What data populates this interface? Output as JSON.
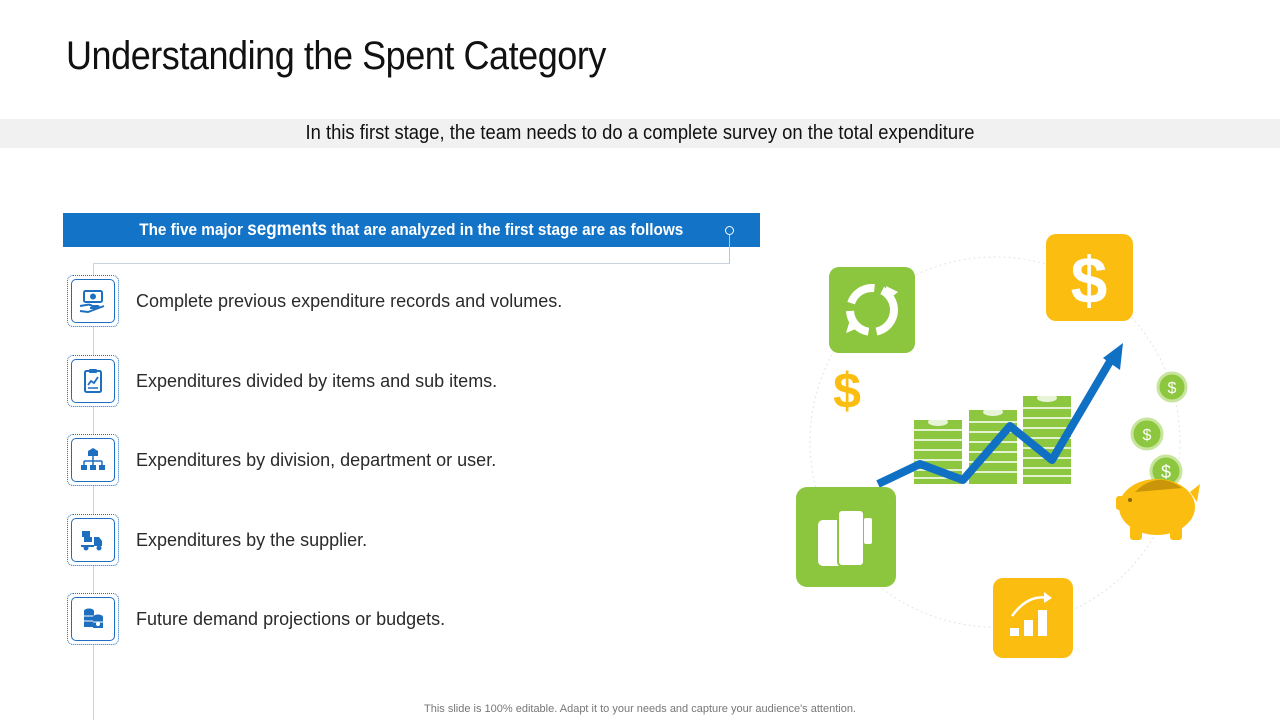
{
  "title": "Understanding the Spent Category",
  "subtitle": "In this first stage, the team needs to do a complete survey on the total expenditure",
  "banner": {
    "part1": "The five major ",
    "emphasis": "segments",
    "part2": " that are analyzed in the first stage are as follows"
  },
  "items": [
    {
      "label": "Complete previous expenditure records and volumes.",
      "icon": "money-hand-icon"
    },
    {
      "label": "Expenditures divided by items and sub items.",
      "icon": "clipboard-chart-icon"
    },
    {
      "label": "Expenditures by division, department or user.",
      "icon": "org-chart-icon"
    },
    {
      "label": "Expenditures by the supplier.",
      "icon": "delivery-truck-icon"
    },
    {
      "label": "Future demand projections or budgets.",
      "icon": "coins-stack-icon"
    }
  ],
  "footer": "This slide is 100% editable. Adapt it to your needs and capture your audience's attention.",
  "colors": {
    "accent_blue": "#1273c7",
    "green": "#8cc63f",
    "yellow": "#fbbd10",
    "money_green": "#8dc63f"
  },
  "illustration": {
    "dollar_sign": "$",
    "icons": [
      "recycle-icon",
      "dollar-tile-icon",
      "wallet-icon",
      "growth-chart-icon",
      "piggy-bank-icon",
      "coin-icon"
    ]
  }
}
